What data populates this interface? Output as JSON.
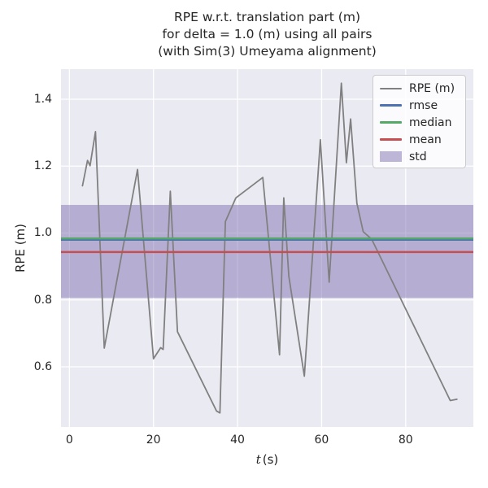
{
  "figure": {
    "title_lines": [
      "RPE w.r.t. translation part (m)",
      "for delta = 1.0 (m) using all pairs",
      "(with Sim(3) Umeyama alignment)"
    ],
    "background": "#ffffff",
    "axes_background": "#eaeaf2",
    "grid_color": "#ffffff",
    "text_color": "#262626"
  },
  "chart_data": {
    "type": "line",
    "title": "RPE w.r.t. translation part (m) for delta = 1.0 (m) using all pairs (with Sim(3) Umeyama alignment)",
    "xlabel": "t (s)",
    "xlabel_var": "t",
    "xlabel_unit": "(s)",
    "ylabel": "RPE (m)",
    "xlim": [
      -2.0,
      96.1
    ],
    "ylim": [
      0.42,
      1.49
    ],
    "xticks": [
      0,
      20,
      40,
      60,
      80
    ],
    "yticks": [
      0.6,
      0.8,
      1.0,
      1.2,
      1.4
    ],
    "grid": true,
    "legend_position": "upper right",
    "series": [
      {
        "name": "RPE (m)",
        "color": "#808080",
        "x": [
          3.1,
          4.3,
          4.9,
          6.2,
          8.3,
          16.2,
          20.0,
          21.7,
          22.3,
          24.0,
          25.7,
          35.0,
          35.8,
          37.1,
          39.6,
          46.0,
          50.0,
          51.0,
          52.2,
          55.9,
          59.7,
          61.8,
          64.7,
          65.9,
          66.9,
          68.4,
          69.9,
          71.9,
          90.6,
          92.2
        ],
        "y": [
          1.141,
          1.217,
          1.201,
          1.303,
          0.656,
          1.19,
          0.624,
          0.657,
          0.652,
          1.125,
          0.705,
          0.468,
          0.462,
          1.034,
          1.105,
          1.166,
          0.636,
          1.105,
          0.871,
          0.572,
          1.279,
          0.853,
          1.448,
          1.21,
          1.341,
          1.089,
          1.004,
          0.982,
          0.499,
          0.503
        ]
      }
    ],
    "stat_lines": [
      {
        "name": "rmse",
        "value": 0.98,
        "color": "#4c72b0"
      },
      {
        "name": "median",
        "value": 0.984,
        "color": "#55a868"
      },
      {
        "name": "mean",
        "value": 0.943,
        "color": "#c44e52"
      }
    ],
    "std_band": {
      "name": "std",
      "from": 0.806,
      "to": 1.084,
      "mean": 0.943,
      "std": 0.139,
      "color": "#8172b2",
      "alpha": 0.5
    }
  },
  "legend": {
    "entries": [
      {
        "label": "RPE (m)",
        "type": "line",
        "color": "#808080"
      },
      {
        "label": "rmse",
        "type": "line",
        "color": "#4c72b0"
      },
      {
        "label": "median",
        "type": "line",
        "color": "#55a868"
      },
      {
        "label": "mean",
        "type": "line",
        "color": "#c44e52"
      },
      {
        "label": "std",
        "type": "patch",
        "color": "#8172b2"
      }
    ]
  }
}
